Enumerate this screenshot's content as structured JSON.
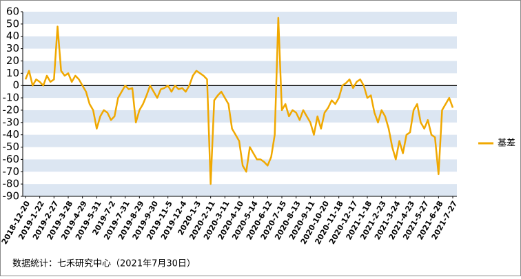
{
  "chart_data": {
    "type": "line",
    "categories": [
      "2018-12-20",
      null,
      null,
      null,
      "2019-1-22",
      null,
      null,
      null,
      "2019-2-27",
      null,
      null,
      null,
      "2019-3-28",
      null,
      null,
      null,
      "2019-4-29",
      null,
      null,
      null,
      "2019-5-31",
      null,
      null,
      null,
      "2019-7-2",
      null,
      null,
      null,
      "2019-7-31",
      null,
      null,
      null,
      "2019-8-29",
      null,
      null,
      null,
      "2019-9-30",
      null,
      null,
      null,
      "2019-11-5",
      null,
      null,
      null,
      "2019-12-4",
      null,
      null,
      null,
      "2020-1-3",
      null,
      null,
      null,
      "2020-2-11",
      null,
      null,
      null,
      "2020-3-11",
      null,
      null,
      null,
      "2020-4-10",
      null,
      null,
      null,
      "2020-5-14",
      null,
      null,
      null,
      "2020-6-12",
      null,
      null,
      null,
      "2020-7-15",
      null,
      null,
      null,
      "2020-8-13",
      null,
      null,
      null,
      "2020-9-11",
      null,
      null,
      null,
      "2020-10-20",
      null,
      null,
      null,
      "2020-11-18",
      null,
      null,
      null,
      "2020-12-17",
      null,
      null,
      null,
      "2021-1-18",
      null,
      null,
      null,
      "2021-2-23",
      null,
      null,
      null,
      "2021-3-24",
      null,
      null,
      null,
      "2021-4-23",
      null,
      null,
      null,
      "2021-5-27",
      null,
      null,
      null,
      "2021-6-28",
      null,
      null,
      null,
      "2021-7-27"
    ],
    "series": [
      {
        "name": "基差",
        "color": "#f0a800",
        "values": [
          5,
          12,
          0,
          5,
          3,
          0,
          8,
          3,
          5,
          48,
          12,
          8,
          10,
          3,
          8,
          5,
          0,
          -5,
          -15,
          -20,
          -35,
          -25,
          -20,
          -22,
          -28,
          -25,
          -10,
          -5,
          0,
          -3,
          -2,
          -30,
          -20,
          -15,
          -8,
          0,
          -5,
          -10,
          -3,
          -2,
          0,
          -5,
          0,
          -3,
          -2,
          -5,
          0,
          8,
          12,
          10,
          8,
          5,
          -80,
          -12,
          -8,
          -5,
          -10,
          -15,
          -35,
          -40,
          -45,
          -65,
          -70,
          -50,
          -55,
          -60,
          -60,
          -62,
          -65,
          -58,
          -40,
          55,
          -20,
          -15,
          -25,
          -20,
          -22,
          -28,
          -20,
          -25,
          -30,
          -40,
          -25,
          -35,
          -22,
          -18,
          -12,
          -15,
          -10,
          0,
          2,
          5,
          -2,
          3,
          5,
          0,
          -10,
          -8,
          -22,
          -30,
          -20,
          -25,
          -35,
          -50,
          -60,
          -45,
          -55,
          -40,
          -38,
          -20,
          -15,
          -30,
          -35,
          -28,
          -40,
          -42,
          -72,
          -20,
          -15,
          -10,
          -18
        ]
      }
    ],
    "ylim": [
      -90,
      60
    ],
    "yticks": [
      -90,
      -80,
      -70,
      -60,
      -50,
      -40,
      -30,
      -20,
      -10,
      0,
      10,
      20,
      30,
      40,
      50,
      60
    ],
    "grid": "bands",
    "band_color": "#dce6f2",
    "legend": "right",
    "source": "数据统计：七禾研究中心（2021年7月30日）"
  }
}
